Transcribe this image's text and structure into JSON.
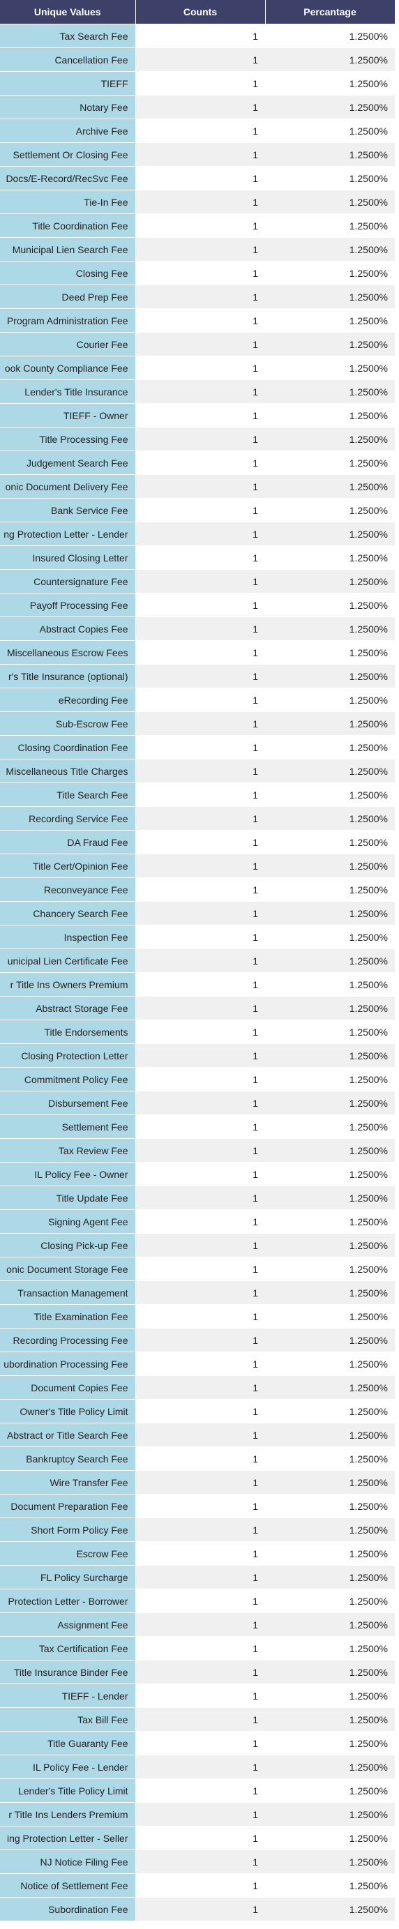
{
  "colors": {
    "header_bg": "#3d416a",
    "name_cell_bg": "#add8e6",
    "row_odd_bg": "#ffffff",
    "row_even_bg": "#f0f0f0"
  },
  "table": {
    "headers": [
      "Unique Values",
      "Counts",
      "Percantage"
    ],
    "rows": [
      [
        "Tax Search Fee",
        "1",
        "1.2500%"
      ],
      [
        "Cancellation Fee",
        "1",
        "1.2500%"
      ],
      [
        "TIEFF",
        "1",
        "1.2500%"
      ],
      [
        "Notary Fee",
        "1",
        "1.2500%"
      ],
      [
        "Archive Fee",
        "1",
        "1.2500%"
      ],
      [
        "Settlement Or Closing Fee",
        "1",
        "1.2500%"
      ],
      [
        "Docs/E-Record/RecSvc Fee",
        "1",
        "1.2500%"
      ],
      [
        "Tie-In Fee",
        "1",
        "1.2500%"
      ],
      [
        "Title Coordination Fee",
        "1",
        "1.2500%"
      ],
      [
        "Municipal Lien Search Fee",
        "1",
        "1.2500%"
      ],
      [
        "Closing Fee",
        "1",
        "1.2500%"
      ],
      [
        "Deed Prep Fee",
        "1",
        "1.2500%"
      ],
      [
        "Program Administration Fee",
        "1",
        "1.2500%"
      ],
      [
        "Courier Fee",
        "1",
        "1.2500%"
      ],
      [
        "ook County Compliance Fee",
        "1",
        "1.2500%"
      ],
      [
        "Lender's Title Insurance",
        "1",
        "1.2500%"
      ],
      [
        "TIEFF - Owner",
        "1",
        "1.2500%"
      ],
      [
        "Title Processing Fee",
        "1",
        "1.2500%"
      ],
      [
        "Judgement Search Fee",
        "1",
        "1.2500%"
      ],
      [
        "onic Document Delivery Fee",
        "1",
        "1.2500%"
      ],
      [
        "Bank Service Fee",
        "1",
        "1.2500%"
      ],
      [
        "ng Protection Letter - Lender",
        "1",
        "1.2500%"
      ],
      [
        "Insured Closing Letter",
        "1",
        "1.2500%"
      ],
      [
        "Countersignature Fee",
        "1",
        "1.2500%"
      ],
      [
        "Payoff Processing Fee",
        "1",
        "1.2500%"
      ],
      [
        "Abstract Copies Fee",
        "1",
        "1.2500%"
      ],
      [
        "Miscellaneous Escrow Fees",
        "1",
        "1.2500%"
      ],
      [
        "r's Title Insurance (optional)",
        "1",
        "1.2500%"
      ],
      [
        "eRecording Fee",
        "1",
        "1.2500%"
      ],
      [
        "Sub-Escrow Fee",
        "1",
        "1.2500%"
      ],
      [
        "Closing Coordination Fee",
        "1",
        "1.2500%"
      ],
      [
        "Miscellaneous Title Charges",
        "1",
        "1.2500%"
      ],
      [
        "Title Search Fee",
        "1",
        "1.2500%"
      ],
      [
        "Recording Service Fee",
        "1",
        "1.2500%"
      ],
      [
        "DA Fraud Fee",
        "1",
        "1.2500%"
      ],
      [
        "Title Cert/Opinion Fee",
        "1",
        "1.2500%"
      ],
      [
        "Reconveyance Fee",
        "1",
        "1.2500%"
      ],
      [
        "Chancery Search Fee",
        "1",
        "1.2500%"
      ],
      [
        "Inspection Fee",
        "1",
        "1.2500%"
      ],
      [
        "unicipal Lien Certificate Fee",
        "1",
        "1.2500%"
      ],
      [
        "r Title Ins Owners Premium",
        "1",
        "1.2500%"
      ],
      [
        "Abstract Storage Fee",
        "1",
        "1.2500%"
      ],
      [
        "Title Endorsements",
        "1",
        "1.2500%"
      ],
      [
        "Closing Protection Letter",
        "1",
        "1.2500%"
      ],
      [
        "Commitment Policy Fee",
        "1",
        "1.2500%"
      ],
      [
        "Disbursement Fee",
        "1",
        "1.2500%"
      ],
      [
        "Settlement Fee",
        "1",
        "1.2500%"
      ],
      [
        "Tax Review Fee",
        "1",
        "1.2500%"
      ],
      [
        "IL Policy Fee - Owner",
        "1",
        "1.2500%"
      ],
      [
        "Title Update Fee",
        "1",
        "1.2500%"
      ],
      [
        "Signing Agent Fee",
        "1",
        "1.2500%"
      ],
      [
        "Closing Pick-up Fee",
        "1",
        "1.2500%"
      ],
      [
        "onic Document Storage Fee",
        "1",
        "1.2500%"
      ],
      [
        "Transaction Management",
        "1",
        "1.2500%"
      ],
      [
        "Title Examination Fee",
        "1",
        "1.2500%"
      ],
      [
        "Recording Processing Fee",
        "1",
        "1.2500%"
      ],
      [
        "ubordination Processing Fee",
        "1",
        "1.2500%"
      ],
      [
        "Document Copies Fee",
        "1",
        "1.2500%"
      ],
      [
        "Owner's Title Policy Limit",
        "1",
        "1.2500%"
      ],
      [
        "Abstract or Title Search Fee",
        "1",
        "1.2500%"
      ],
      [
        "Bankruptcy Search Fee",
        "1",
        "1.2500%"
      ],
      [
        "Wire Transfer Fee",
        "1",
        "1.2500%"
      ],
      [
        "Document Preparation Fee",
        "1",
        "1.2500%"
      ],
      [
        "Short Form Policy Fee",
        "1",
        "1.2500%"
      ],
      [
        "Escrow Fee",
        "1",
        "1.2500%"
      ],
      [
        "FL Policy Surcharge",
        "1",
        "1.2500%"
      ],
      [
        "Protection Letter - Borrower",
        "1",
        "1.2500%"
      ],
      [
        "Assignment Fee",
        "1",
        "1.2500%"
      ],
      [
        "Tax Certification Fee",
        "1",
        "1.2500%"
      ],
      [
        "Title Insurance Binder Fee",
        "1",
        "1.2500%"
      ],
      [
        "TIEFF - Lender",
        "1",
        "1.2500%"
      ],
      [
        "Tax Bill Fee",
        "1",
        "1.2500%"
      ],
      [
        "Title Guaranty Fee",
        "1",
        "1.2500%"
      ],
      [
        "IL Policy Fee - Lender",
        "1",
        "1.2500%"
      ],
      [
        "Lender's Title Policy Limit",
        "1",
        "1.2500%"
      ],
      [
        "r Title Ins Lenders Premium",
        "1",
        "1.2500%"
      ],
      [
        "ing Protection Letter - Seller",
        "1",
        "1.2500%"
      ],
      [
        "NJ Notice Filing Fee",
        "1",
        "1.2500%"
      ],
      [
        "Notice of Settlement Fee",
        "1",
        "1.2500%"
      ],
      [
        "Subordination Fee",
        "1",
        "1.2500%"
      ]
    ]
  }
}
